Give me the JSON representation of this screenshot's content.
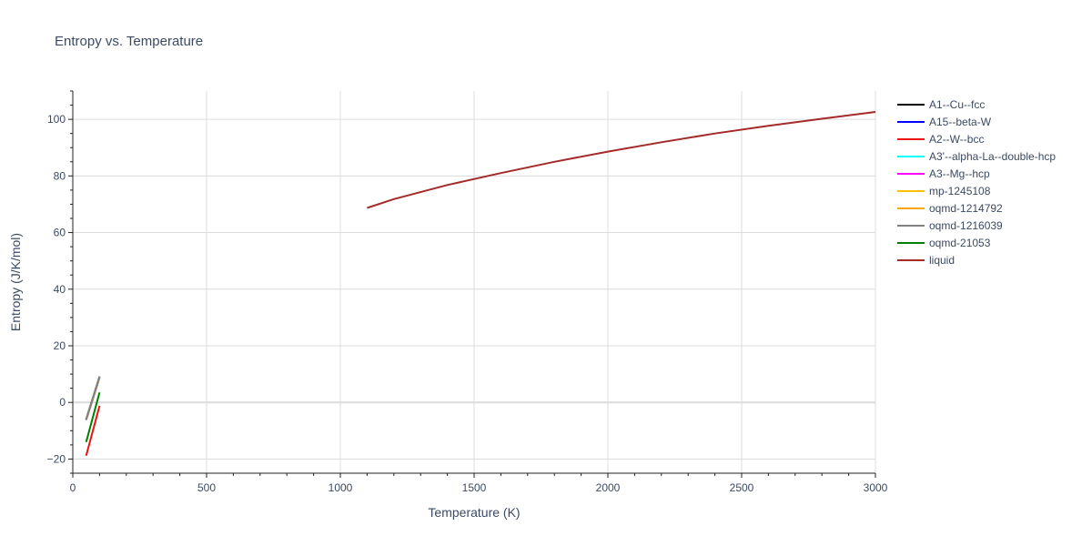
{
  "chart_data": {
    "type": "line",
    "title": "Entropy vs. Temperature",
    "xlabel": "Temperature (K)",
    "ylabel": "Entropy (J/K/mol)",
    "xlim": [
      0,
      3000
    ],
    "ylim": [
      -25,
      110
    ],
    "xticks": [
      0,
      500,
      1000,
      1500,
      2000,
      2500,
      3000
    ],
    "yticks": [
      -20,
      0,
      20,
      40,
      60,
      80,
      100
    ],
    "grid": true,
    "legend_position": "right",
    "series": [
      {
        "name": "A1--Cu--fcc",
        "color": "#000000",
        "x": [
          50,
          100
        ],
        "y": [
          -6,
          9
        ]
      },
      {
        "name": "A15--beta-W",
        "color": "#0000ff",
        "x": [
          50,
          100
        ],
        "y": [
          -6.2,
          8.8
        ]
      },
      {
        "name": "A2--W--bcc",
        "color": "#ee1111",
        "x": [
          50,
          100
        ],
        "y": [
          -18.8,
          -1.2
        ]
      },
      {
        "name": "A3'--alpha-La--double-hcp",
        "color": "#00ffff",
        "x": [
          50,
          100
        ],
        "y": [
          -5.9,
          9.1
        ]
      },
      {
        "name": "A3--Mg--hcp",
        "color": "#ff00ff",
        "x": [
          50,
          100
        ],
        "y": [
          -6,
          9
        ]
      },
      {
        "name": "mp-1245108",
        "color": "#ffc000",
        "x": [
          50,
          100
        ],
        "y": [
          -6.1,
          9
        ]
      },
      {
        "name": "oqmd-1214792",
        "color": "#ffa500",
        "x": [
          50,
          100
        ],
        "y": [
          -6,
          9
        ]
      },
      {
        "name": "oqmd-1216039",
        "color": "#808080",
        "x": [
          50,
          100
        ],
        "y": [
          -6,
          9.2
        ]
      },
      {
        "name": "oqmd-21053",
        "color": "#008000",
        "x": [
          50,
          100
        ],
        "y": [
          -14,
          3.5
        ]
      },
      {
        "name": "liquid",
        "color": "#a52a2a",
        "x": [
          1100,
          1200,
          1400,
          1600,
          1800,
          2000,
          2200,
          2400,
          2600,
          2800,
          3000
        ],
        "y": [
          68.7,
          71.8,
          76.8,
          81,
          85,
          88.6,
          91.9,
          95,
          97.7,
          100.2,
          102.6
        ]
      }
    ]
  }
}
